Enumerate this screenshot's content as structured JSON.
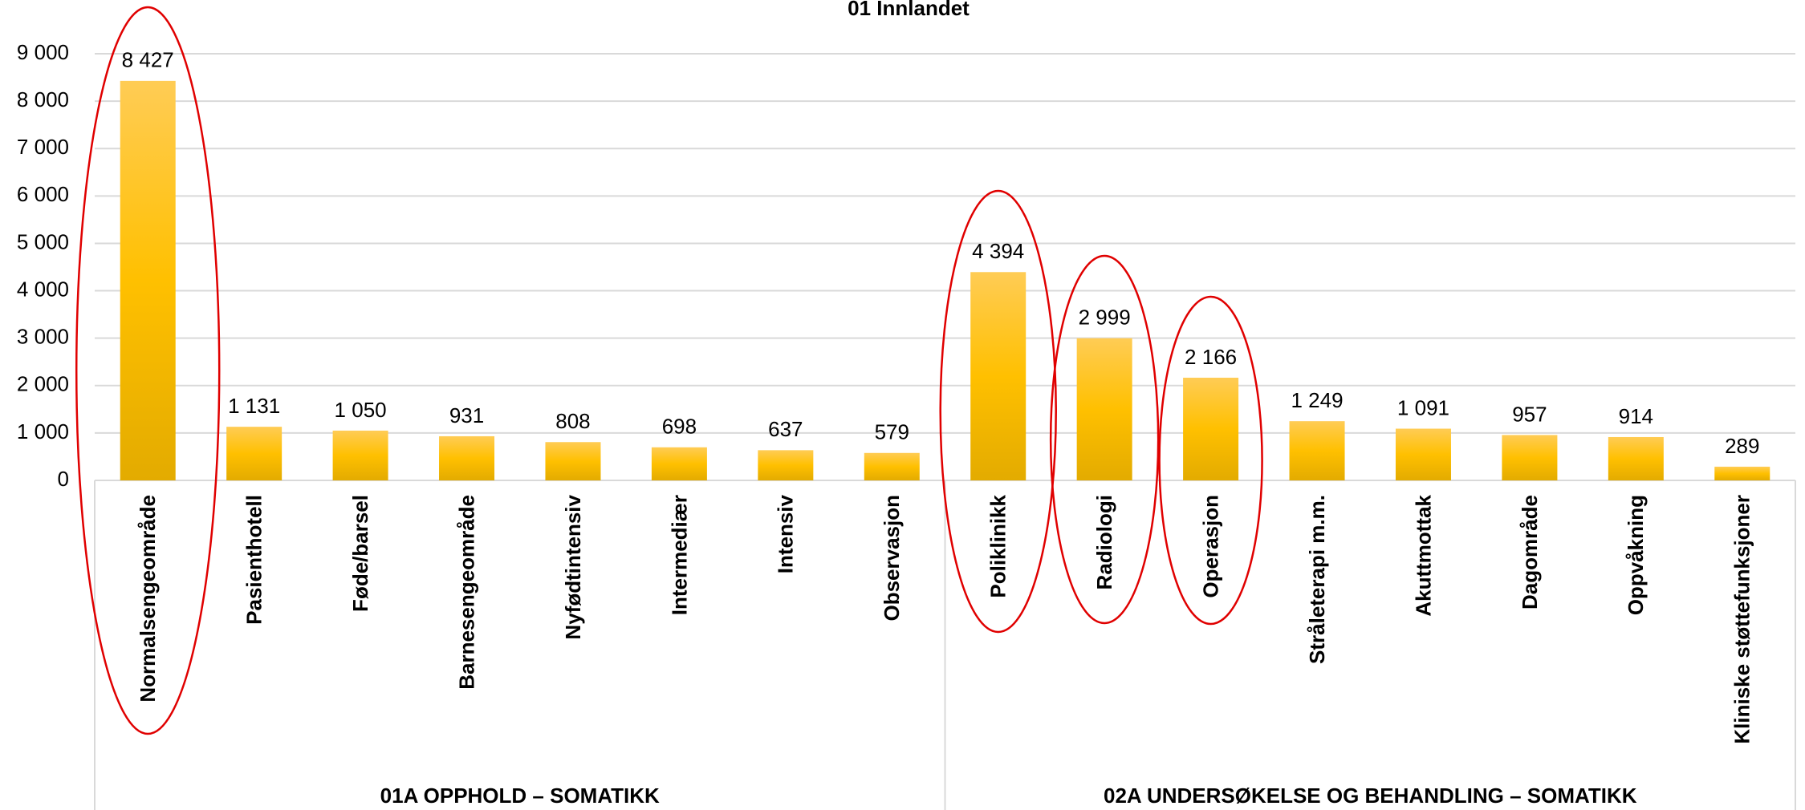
{
  "chart_data": {
    "type": "bar",
    "title": "01 Innlandet",
    "categories": [
      "Normalsengeområde",
      "Pasienthotell",
      "Føde/barsel",
      "Barnesengeområde",
      "Nyfødtintensiv",
      "Intermediær",
      "Intensiv",
      "Observasjon",
      "Poliklinikk",
      "Radiologi",
      "Operasjon",
      "Stråleterapi m.m.",
      "Akuttmottak",
      "Dagområde",
      "Oppvåkning",
      "Kliniske støttefunksjoner"
    ],
    "groups": [
      {
        "name": "01A OPPHOLD – SOMATIKK",
        "size": 8
      },
      {
        "name": "02A UNDERSØKELSE OG BEHANDLING – SOMATIKK",
        "size": 8
      }
    ],
    "values": [
      8427,
      1131,
      1050,
      931,
      808,
      698,
      637,
      579,
      4394,
      2999,
      2166,
      1249,
      1091,
      957,
      914,
      289
    ],
    "value_labels": [
      "8 427",
      "1 131",
      "1 050",
      "931",
      "808",
      "698",
      "637",
      "579",
      "4 394",
      "2 999",
      "2 166",
      "1 249",
      "1 091",
      "957",
      "914",
      "289"
    ],
    "color": "#ffc000",
    "ylim": [
      0,
      9000
    ],
    "yticks": [
      0,
      {
        "value": 1000,
        "label": "1 000"
      },
      {
        "value": 2000,
        "label": "2 000"
      },
      {
        "value": 3000,
        "label": "3 000"
      },
      {
        "value": 4000,
        "label": "4 000"
      },
      {
        "value": 5000,
        "label": "5 000"
      },
      {
        "value": 6000,
        "label": "6 000"
      },
      {
        "value": 7000,
        "label": "7 000"
      },
      {
        "value": 8000,
        "label": "8 000"
      },
      {
        "value": 9000,
        "label": "9 000"
      }
    ],
    "grid": true
  }
}
